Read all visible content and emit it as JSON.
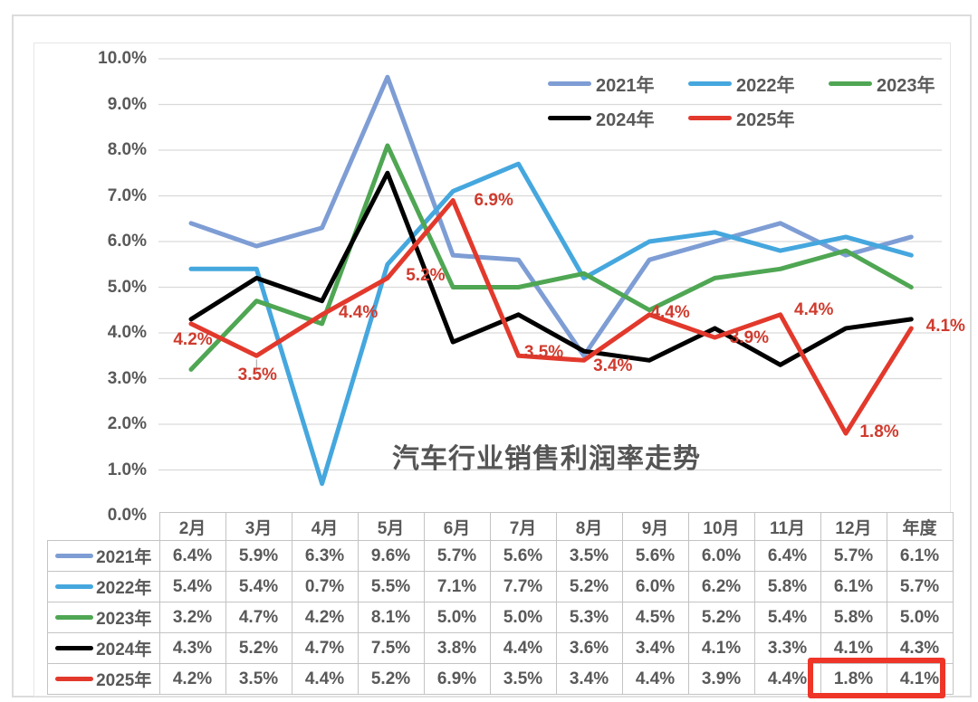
{
  "chart_data": {
    "type": "line",
    "title": "汽车行业销售利润率走势",
    "categories": [
      "2月",
      "3月",
      "4月",
      "5月",
      "6月",
      "7月",
      "8月",
      "9月",
      "10月",
      "11月",
      "12月",
      "年度"
    ],
    "series": [
      {
        "name": "2021年",
        "color": "#7e9dd4",
        "values": [
          6.4,
          5.9,
          6.3,
          9.6,
          5.7,
          5.6,
          3.5,
          5.6,
          6.0,
          6.4,
          5.7,
          6.1
        ]
      },
      {
        "name": "2022年",
        "color": "#45a7de",
        "values": [
          5.4,
          5.4,
          0.7,
          5.5,
          7.1,
          7.7,
          5.2,
          6.0,
          6.2,
          5.8,
          6.1,
          5.7
        ]
      },
      {
        "name": "2023年",
        "color": "#4fa653",
        "values": [
          3.2,
          4.7,
          4.2,
          8.1,
          5.0,
          5.0,
          5.3,
          4.5,
          5.2,
          5.4,
          5.8,
          5.0
        ]
      },
      {
        "name": "2024年",
        "color": "#000000",
        "values": [
          4.3,
          5.2,
          4.7,
          7.5,
          3.8,
          4.4,
          3.6,
          3.4,
          4.1,
          3.3,
          4.1,
          4.3
        ]
      },
      {
        "name": "2025年",
        "color": "#e2392c",
        "values": [
          4.2,
          3.5,
          4.4,
          5.2,
          6.9,
          3.5,
          3.4,
          4.4,
          3.9,
          4.4,
          1.8,
          4.1
        ]
      }
    ],
    "y_axis": {
      "min": 0,
      "max": 10,
      "tick_step": 1,
      "tick_labels": [
        "10.0%",
        "9.0%",
        "8.0%",
        "7.0%",
        "6.0%",
        "5.0%",
        "4.0%",
        "3.0%",
        "2.0%",
        "1.0%",
        "0.0%"
      ]
    },
    "grid": true,
    "gridline_color": "#d9d9d9",
    "legend_position": "top-right-inside",
    "legend_rows": [
      [
        "2021年",
        "2022年",
        "2023年"
      ],
      [
        "2024年",
        "2025年"
      ]
    ],
    "data_label_series": "2025年",
    "data_label_color": "#cf3b2e",
    "data_labels": [
      "4.2%",
      "3.5%",
      "4.4%",
      "5.2%",
      "6.9%",
      "3.5%",
      "3.4%",
      "4.4%",
      "3.9%",
      "4.4%",
      "1.8%",
      "4.1%"
    ]
  },
  "table": {
    "corner_label": "",
    "col_headers": [
      "2月",
      "3月",
      "4月",
      "5月",
      "6月",
      "7月",
      "8月",
      "9月",
      "10月",
      "11月",
      "12月",
      "年度"
    ],
    "rows": [
      {
        "label": "2021年",
        "swatch_color": "#7e9dd4",
        "values": [
          "6.4%",
          "5.9%",
          "6.3%",
          "9.6%",
          "5.7%",
          "5.6%",
          "3.5%",
          "5.6%",
          "6.0%",
          "6.4%",
          "5.7%",
          "6.1%"
        ]
      },
      {
        "label": "2022年",
        "swatch_color": "#45a7de",
        "values": [
          "5.4%",
          "5.4%",
          "0.7%",
          "5.5%",
          "7.1%",
          "7.7%",
          "5.2%",
          "6.0%",
          "6.2%",
          "5.8%",
          "6.1%",
          "5.7%"
        ]
      },
      {
        "label": "2023年",
        "swatch_color": "#4fa653",
        "values": [
          "3.2%",
          "4.7%",
          "4.2%",
          "8.1%",
          "5.0%",
          "5.0%",
          "5.3%",
          "4.5%",
          "5.2%",
          "5.4%",
          "5.8%",
          "5.0%"
        ]
      },
      {
        "label": "2024年",
        "swatch_color": "#000000",
        "values": [
          "4.3%",
          "5.2%",
          "4.7%",
          "7.5%",
          "3.8%",
          "4.4%",
          "3.6%",
          "3.4%",
          "4.1%",
          "3.3%",
          "4.1%",
          "4.3%"
        ]
      },
      {
        "label": "2025年",
        "swatch_color": "#e2392c",
        "values": [
          "4.2%",
          "3.5%",
          "4.4%",
          "5.2%",
          "6.9%",
          "3.5%",
          "3.4%",
          "4.4%",
          "3.9%",
          "4.4%",
          "1.8%",
          "4.1%"
        ]
      }
    ],
    "highlight": {
      "row_label": "2025年",
      "columns": [
        "12月",
        "年度"
      ],
      "values": [
        "1.8%",
        "4.1%"
      ],
      "box_color": "#ee3528"
    }
  },
  "colors": {
    "axis_label": "#595959",
    "title": "#555555",
    "table_border": "#c3c3c3"
  }
}
